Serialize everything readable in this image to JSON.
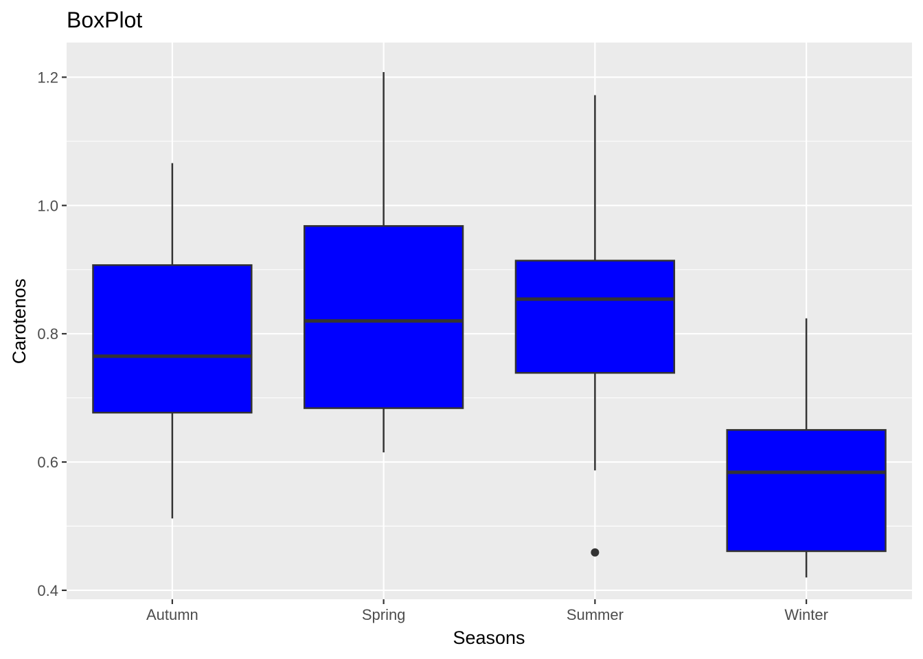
{
  "chart_data": {
    "type": "boxplot",
    "title": "BoxPlot",
    "xlabel": "Seasons",
    "ylabel": "Carotenos",
    "categories": [
      "Autumn",
      "Spring",
      "Summer",
      "Winter"
    ],
    "ylim": [
      0.386,
      1.254
    ],
    "yticks": [
      0.4,
      0.6,
      0.8,
      1.0,
      1.2
    ],
    "ytick_labels": [
      "0.4",
      "0.6",
      "0.8",
      "1.0",
      "1.2"
    ],
    "boxes": [
      {
        "category": "Autumn",
        "whisker_low": 0.512,
        "q1": 0.677,
        "median": 0.765,
        "q3": 0.907,
        "whisker_high": 1.066,
        "outliers": []
      },
      {
        "category": "Spring",
        "whisker_low": 0.615,
        "q1": 0.684,
        "median": 0.82,
        "q3": 0.968,
        "whisker_high": 1.208,
        "outliers": []
      },
      {
        "category": "Summer",
        "whisker_low": 0.587,
        "q1": 0.739,
        "median": 0.854,
        "q3": 0.914,
        "whisker_high": 1.172,
        "outliers": [
          0.459
        ]
      },
      {
        "category": "Winter",
        "whisker_low": 0.42,
        "q1": 0.461,
        "median": 0.584,
        "q3": 0.65,
        "whisker_high": 0.824,
        "outliers": []
      }
    ],
    "fill_color": "#0000ff",
    "line_color": "#333333",
    "panel_background": "#ebebeb",
    "grid": true,
    "legend": "none"
  }
}
